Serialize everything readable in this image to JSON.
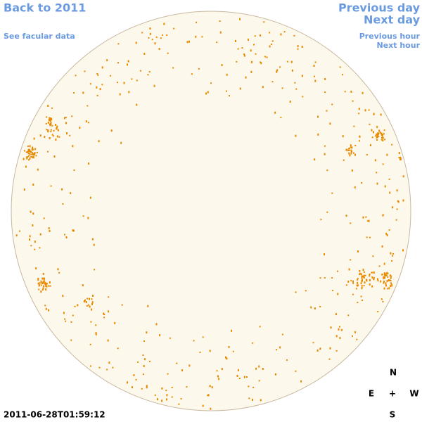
{
  "header": {
    "back": "Back to 2011",
    "facular": "See facular data"
  },
  "nav": {
    "previous_day": "Previous day",
    "next_day": "Next day",
    "previous_hour": "Previous hour",
    "next_hour": "Next hour"
  },
  "compass": {
    "north": "N",
    "east": "E",
    "center": "+",
    "west": "W",
    "south": "S"
  },
  "timestamp": "2011-06-28T01:59:12"
}
